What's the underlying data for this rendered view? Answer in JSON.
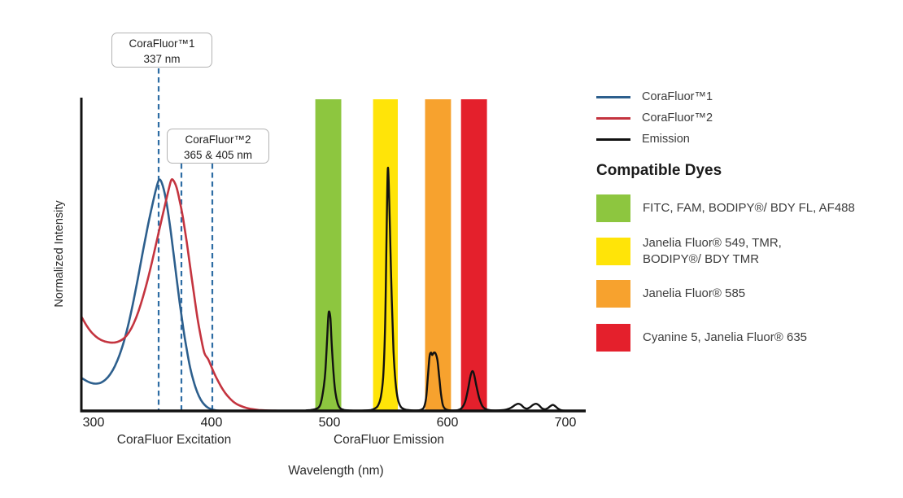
{
  "chart_data": {
    "type": "line",
    "title": "",
    "xlabel": "Wavelength (nm)",
    "ylabel": "Normalized Intensity",
    "x_axis_unit": "nm",
    "x_range_nm": [
      290,
      717
    ],
    "y_range_normalized": [
      0,
      1.35
    ],
    "grid": false,
    "xticks": [
      300,
      400,
      500,
      600,
      700
    ],
    "x_section_labels": [
      {
        "text": "CoraFluor Excitation"
      },
      {
        "text": "CoraFluor Emission"
      }
    ],
    "excitation_markers": [
      {
        "label_line1": "CoraFluor™1",
        "label_line2": "337 nm",
        "wavelengths_nm": [
          337
        ]
      },
      {
        "label_line1": "CoraFluor™2",
        "label_line2": "365 & 405 nm",
        "wavelengths_nm": [
          365,
          405
        ]
      }
    ],
    "bands": [
      {
        "name": "green-filter-band",
        "nm_range": [
          488,
          510
        ],
        "color": "#8DC63F"
      },
      {
        "name": "yellow-filter-band",
        "nm_range": [
          537,
          558
        ],
        "color": "#FFE408"
      },
      {
        "name": "orange-filter-band",
        "nm_range": [
          581,
          603
        ],
        "color": "#F7A22E"
      },
      {
        "name": "red-filter-band",
        "nm_range": [
          611.5,
          633.5
        ],
        "color": "#E4202C"
      }
    ],
    "series": [
      {
        "name": "CoraFluor™1 excitation",
        "color": "#2D5F8D",
        "points": [
          [
            290,
            0.142
          ],
          [
            294,
            0.13
          ],
          [
            298,
            0.121
          ],
          [
            302,
            0.118
          ],
          [
            306,
            0.122
          ],
          [
            310,
            0.135
          ],
          [
            314,
            0.158
          ],
          [
            318,
            0.193
          ],
          [
            322,
            0.242
          ],
          [
            326,
            0.305
          ],
          [
            330,
            0.385
          ],
          [
            334,
            0.48
          ],
          [
            338,
            0.585
          ],
          [
            342,
            0.695
          ],
          [
            346,
            0.8
          ],
          [
            350,
            0.895
          ],
          [
            353,
            0.96
          ],
          [
            355.5,
            1.0
          ],
          [
            358,
            0.985
          ],
          [
            361,
            0.925
          ],
          [
            364,
            0.83
          ],
          [
            367,
            0.715
          ],
          [
            370,
            0.59
          ],
          [
            373,
            0.47
          ],
          [
            376,
            0.36
          ],
          [
            379,
            0.265
          ],
          [
            382,
            0.185
          ],
          [
            385,
            0.125
          ],
          [
            388,
            0.08
          ],
          [
            391,
            0.048
          ],
          [
            394,
            0.027
          ],
          [
            397,
            0.014
          ],
          [
            400,
            0.007
          ],
          [
            403,
            0.003
          ],
          [
            406,
            0.001
          ],
          [
            409,
            0
          ]
        ]
      },
      {
        "name": "CoraFluor™2 excitation",
        "color": "#C4343F",
        "points": [
          [
            290,
            0.405
          ],
          [
            294,
            0.37
          ],
          [
            298,
            0.342
          ],
          [
            302,
            0.322
          ],
          [
            306,
            0.308
          ],
          [
            310,
            0.3
          ],
          [
            314,
            0.296
          ],
          [
            318,
            0.296
          ],
          [
            322,
            0.302
          ],
          [
            326,
            0.315
          ],
          [
            330,
            0.34
          ],
          [
            334,
            0.378
          ],
          [
            338,
            0.43
          ],
          [
            342,
            0.495
          ],
          [
            346,
            0.57
          ],
          [
            350,
            0.655
          ],
          [
            354,
            0.745
          ],
          [
            358,
            0.835
          ],
          [
            361,
            0.9
          ],
          [
            364,
            0.965
          ],
          [
            366,
            1.0
          ],
          [
            368,
            0.995
          ],
          [
            370.5,
            0.965
          ],
          [
            373,
            0.91
          ],
          [
            376,
            0.83
          ],
          [
            379,
            0.73
          ],
          [
            382,
            0.62
          ],
          [
            385,
            0.51
          ],
          [
            388,
            0.405
          ],
          [
            391,
            0.32
          ],
          [
            394,
            0.25
          ],
          [
            397,
            0.225
          ],
          [
            400,
            0.19
          ],
          [
            403,
            0.155
          ],
          [
            406,
            0.125
          ],
          [
            409,
            0.098
          ],
          [
            412,
            0.075
          ],
          [
            415,
            0.057
          ],
          [
            418,
            0.042
          ],
          [
            421,
            0.031
          ],
          [
            425,
            0.021
          ],
          [
            429,
            0.014
          ],
          [
            434,
            0.008
          ],
          [
            440,
            0.004
          ],
          [
            447,
            0.002
          ],
          [
            454,
            0.001
          ],
          [
            460,
            0
          ]
        ]
      },
      {
        "name": "Emission",
        "color": "#111111",
        "points": [
          [
            480,
            0.002
          ],
          [
            484,
            0.004
          ],
          [
            488,
            0.008
          ],
          [
            491,
            0.016
          ],
          [
            493,
            0.04
          ],
          [
            495,
            0.1
          ],
          [
            496.5,
            0.17
          ],
          [
            498,
            0.31
          ],
          [
            499,
            0.41
          ],
          [
            499.8,
            0.43
          ],
          [
            500.8,
            0.4
          ],
          [
            502,
            0.28
          ],
          [
            503.5,
            0.16
          ],
          [
            505,
            0.08
          ],
          [
            507,
            0.032
          ],
          [
            509,
            0.012
          ],
          [
            512,
            0.005
          ],
          [
            517,
            0.002
          ],
          [
            524,
            0.001
          ],
          [
            530,
            0.002
          ],
          [
            535,
            0.004
          ],
          [
            538,
            0.009
          ],
          [
            541,
            0.022
          ],
          [
            543.5,
            0.06
          ],
          [
            545.5,
            0.145
          ],
          [
            547,
            0.33
          ],
          [
            548,
            0.62
          ],
          [
            548.8,
            0.9
          ],
          [
            549.5,
            1.05
          ],
          [
            550.3,
            0.98
          ],
          [
            551.3,
            0.78
          ],
          [
            552.8,
            0.48
          ],
          [
            554.3,
            0.26
          ],
          [
            556,
            0.125
          ],
          [
            558,
            0.05
          ],
          [
            560.5,
            0.018
          ],
          [
            563.5,
            0.007
          ],
          [
            568,
            0.003
          ],
          [
            573,
            0.002
          ],
          [
            577,
            0.004
          ],
          [
            580,
            0.015
          ],
          [
            582,
            0.06
          ],
          [
            583.5,
            0.155
          ],
          [
            584.8,
            0.235
          ],
          [
            586,
            0.252
          ],
          [
            587.2,
            0.242
          ],
          [
            588.5,
            0.252
          ],
          [
            590,
            0.248
          ],
          [
            591.5,
            0.22
          ],
          [
            593,
            0.15
          ],
          [
            594.5,
            0.075
          ],
          [
            596,
            0.028
          ],
          [
            598,
            0.009
          ],
          [
            601,
            0.003
          ],
          [
            605,
            0.002
          ],
          [
            609,
            0.004
          ],
          [
            612,
            0.012
          ],
          [
            615,
            0.04
          ],
          [
            617.5,
            0.095
          ],
          [
            619.5,
            0.15
          ],
          [
            621,
            0.172
          ],
          [
            622.5,
            0.16
          ],
          [
            624.5,
            0.11
          ],
          [
            627,
            0.055
          ],
          [
            629.5,
            0.022
          ],
          [
            632,
            0.009
          ],
          [
            636,
            0.003
          ],
          [
            641,
            0.002
          ],
          [
            646,
            0.003
          ],
          [
            650,
            0.006
          ],
          [
            654,
            0.014
          ],
          [
            657.5,
            0.026
          ],
          [
            660,
            0.031
          ],
          [
            662.5,
            0.026
          ],
          [
            665,
            0.014
          ],
          [
            667.5,
            0.01
          ],
          [
            670,
            0.016
          ],
          [
            672.5,
            0.026
          ],
          [
            675,
            0.031
          ],
          [
            677.5,
            0.025
          ],
          [
            680,
            0.012
          ],
          [
            682.5,
            0.007
          ],
          [
            685,
            0.012
          ],
          [
            687.5,
            0.022
          ],
          [
            689.5,
            0.026
          ],
          [
            691.5,
            0.02
          ],
          [
            694,
            0.009
          ],
          [
            696.5,
            0.003
          ],
          [
            700,
            0.001
          ],
          [
            706,
            0
          ]
        ]
      }
    ]
  },
  "legend": {
    "entries": [
      {
        "label": "CoraFluor™1",
        "color": "#2D5F8D"
      },
      {
        "label": "CoraFluor™2",
        "color": "#C4343F"
      },
      {
        "label": "Emission",
        "color": "#111111"
      }
    ]
  },
  "compatible_dyes": {
    "heading": "Compatible Dyes",
    "items": [
      {
        "color": "#8DC63F",
        "lines": [
          "FITC, FAM, BODIPY®/ BDY FL, AF488"
        ]
      },
      {
        "color": "#FFE408",
        "lines": [
          "Janelia Fluor® 549, TMR,",
          "BODIPY®/ BDY TMR"
        ]
      },
      {
        "color": "#F7A22E",
        "lines": [
          "Janelia Fluor® 585"
        ]
      },
      {
        "color": "#E4202C",
        "lines": [
          "Cyanine 5, Janelia Fluor® 635"
        ]
      }
    ]
  },
  "marker_style": {
    "dash_color": "#2E6DA4"
  }
}
